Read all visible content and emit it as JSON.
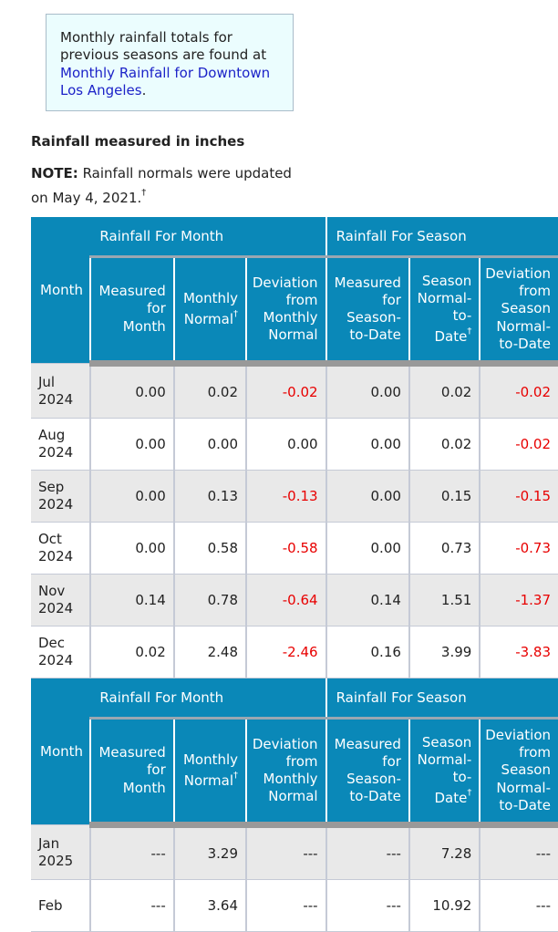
{
  "info_box": {
    "text": "Monthly rainfall totals for previous seasons are found at",
    "link_text": "Monthly Rainfall for Downtown Los Angeles",
    "period": "."
  },
  "section_heading": "Rainfall measured in inches",
  "note": {
    "label": "NOTE:",
    "text": "Rainfall normals were updated on May 4, 2021.",
    "dagger": "†"
  },
  "table": {
    "group_month": "Rainfall For Month",
    "group_season": "Rainfall For Season",
    "col_month": "Month",
    "columns": [
      {
        "lines": [
          "Measured",
          "for",
          "Month"
        ],
        "dagger": false
      },
      {
        "lines": [
          "Monthly",
          "Normal"
        ],
        "dagger": true
      },
      {
        "lines": [
          "Deviation",
          "from",
          "Monthly",
          "Normal"
        ],
        "dagger": false
      },
      {
        "lines": [
          "Measured",
          "for",
          "Season-",
          "to-Date"
        ],
        "dagger": false
      },
      {
        "lines": [
          "Season",
          "Normal-",
          "to-",
          "Date"
        ],
        "dagger": true
      },
      {
        "lines": [
          "Deviation",
          "from",
          "Season",
          "Normal-",
          "to-Date"
        ],
        "dagger": false
      }
    ],
    "dagger": "†",
    "block1": [
      {
        "month": "Jul",
        "year": "2024",
        "values": [
          "0.00",
          "0.02",
          "-0.02",
          "0.00",
          "0.02",
          "-0.02"
        ]
      },
      {
        "month": "Aug",
        "year": "2024",
        "values": [
          "0.00",
          "0.00",
          "0.00",
          "0.00",
          "0.02",
          "-0.02"
        ]
      },
      {
        "month": "Sep",
        "year": "2024",
        "values": [
          "0.00",
          "0.13",
          "-0.13",
          "0.00",
          "0.15",
          "-0.15"
        ]
      },
      {
        "month": "Oct",
        "year": "2024",
        "values": [
          "0.00",
          "0.58",
          "-0.58",
          "0.00",
          "0.73",
          "-0.73"
        ]
      },
      {
        "month": "Nov",
        "year": "2024",
        "values": [
          "0.14",
          "0.78",
          "-0.64",
          "0.14",
          "1.51",
          "-1.37"
        ]
      },
      {
        "month": "Dec",
        "year": "2024",
        "values": [
          "0.02",
          "2.48",
          "-2.46",
          "0.16",
          "3.99",
          "-3.83"
        ]
      }
    ],
    "block2": [
      {
        "month": "Jan",
        "year": "2025",
        "values": [
          "---",
          "3.29",
          "---",
          "---",
          "7.28",
          "---"
        ]
      },
      {
        "month": "Feb",
        "year": "",
        "values": [
          "---",
          "3.64",
          "---",
          "---",
          "10.92",
          "---"
        ]
      }
    ]
  },
  "colors": {
    "header_bg": "#0a88b8",
    "negative": "#e80000",
    "link": "#1d23c8",
    "info_bg": "#ebfdfe"
  }
}
